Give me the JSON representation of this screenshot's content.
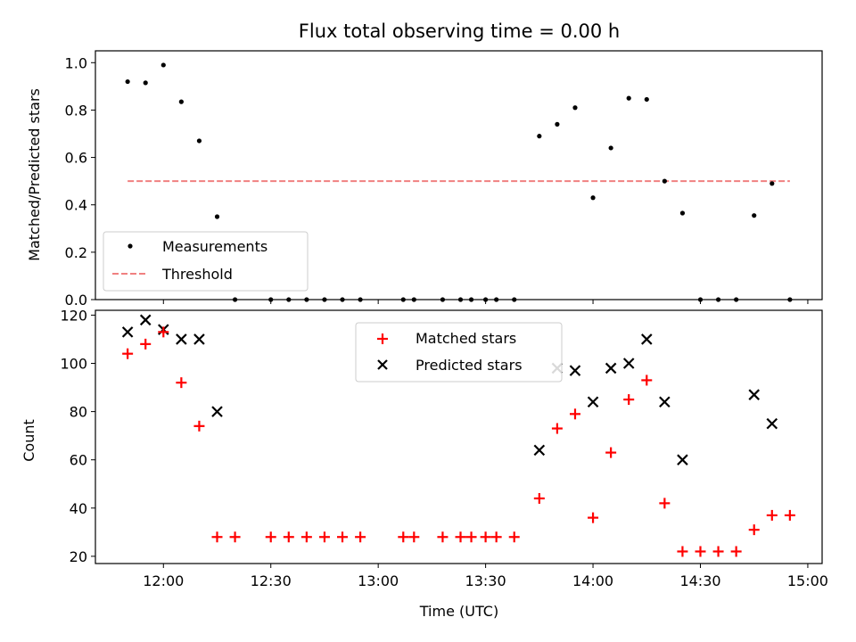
{
  "chart_data": [
    {
      "type": "scatter",
      "title": "Flux total observing time = 0.00 h",
      "xlabel": "",
      "ylabel": "Matched/Predicted stars",
      "xlim": [
        "11:41",
        "15:04"
      ],
      "ylim": [
        0,
        1.05
      ],
      "yticks": [
        "0.0",
        "0.2",
        "0.4",
        "0.6",
        "0.8",
        "1.0"
      ],
      "legend_position": "lower-left",
      "series": [
        {
          "name": "Measurements",
          "marker": "dot",
          "color": "#000000",
          "x": [
            "11:50",
            "11:55",
            "12:00",
            "12:05",
            "12:10",
            "12:15",
            "12:20",
            "12:30",
            "12:35",
            "12:40",
            "12:45",
            "12:50",
            "12:55",
            "13:07",
            "13:10",
            "13:18",
            "13:23",
            "13:26",
            "13:30",
            "13:33",
            "13:38",
            "13:45",
            "13:50",
            "13:55",
            "14:00",
            "14:05",
            "14:10",
            "14:15",
            "14:20",
            "14:25",
            "14:30",
            "14:35",
            "14:40",
            "14:45",
            "14:50",
            "14:55"
          ],
          "y": [
            0.92,
            0.915,
            0.99,
            0.835,
            0.67,
            0.35,
            0,
            0,
            0,
            0,
            0,
            0,
            0,
            0,
            0,
            0,
            0,
            0,
            0,
            0,
            0,
            0.69,
            0.74,
            0.81,
            0.43,
            0.64,
            0.85,
            0.845,
            0.5,
            0.365,
            0,
            0,
            0,
            0.355,
            0.49,
            0
          ]
        },
        {
          "name": "Threshold",
          "marker": "dashed-line",
          "color": "#f08080",
          "x": [
            "11:50",
            "14:55"
          ],
          "y": [
            0.5,
            0.5
          ]
        }
      ]
    },
    {
      "type": "scatter",
      "title": "",
      "xlabel": "Time (UTC)",
      "ylabel": "Count",
      "xlim": [
        "11:41",
        "15:04"
      ],
      "ylim": [
        17,
        122
      ],
      "yticks": [
        "20",
        "40",
        "60",
        "80",
        "100",
        "120"
      ],
      "xticks": [
        "12:00",
        "12:30",
        "13:00",
        "13:30",
        "14:00",
        "14:30",
        "15:00"
      ],
      "legend_position": "upper-center",
      "series": [
        {
          "name": "Matched stars",
          "marker": "plus",
          "color": "#ff0000",
          "x": [
            "11:50",
            "11:55",
            "12:00",
            "12:05",
            "12:10",
            "12:15",
            "12:20",
            "12:30",
            "12:35",
            "12:40",
            "12:45",
            "12:50",
            "12:55",
            "13:07",
            "13:10",
            "13:18",
            "13:23",
            "13:26",
            "13:30",
            "13:33",
            "13:38",
            "13:45",
            "13:50",
            "13:55",
            "14:00",
            "14:05",
            "14:10",
            "14:15",
            "14:20",
            "14:25",
            "14:30",
            "14:35",
            "14:40",
            "14:45",
            "14:50",
            "14:55"
          ],
          "y": [
            104,
            108,
            113,
            92,
            74,
            28,
            28,
            28,
            28,
            28,
            28,
            28,
            28,
            28,
            28,
            28,
            28,
            28,
            28,
            28,
            28,
            44,
            73,
            79,
            36,
            63,
            85,
            93,
            42,
            22,
            22,
            22,
            22,
            31,
            37,
            37
          ]
        },
        {
          "name": "Predicted stars",
          "marker": "x",
          "color": "#000000",
          "x": [
            "11:50",
            "11:55",
            "12:00",
            "12:05",
            "12:10",
            "12:15",
            "13:45",
            "13:50",
            "13:55",
            "14:00",
            "14:05",
            "14:10",
            "14:15",
            "14:20",
            "14:25",
            "14:45",
            "14:50"
          ],
          "y": [
            113,
            118,
            114,
            110,
            110,
            80,
            64,
            98,
            97,
            84,
            98,
            100,
            110,
            84,
            60,
            87,
            75
          ]
        }
      ]
    }
  ]
}
